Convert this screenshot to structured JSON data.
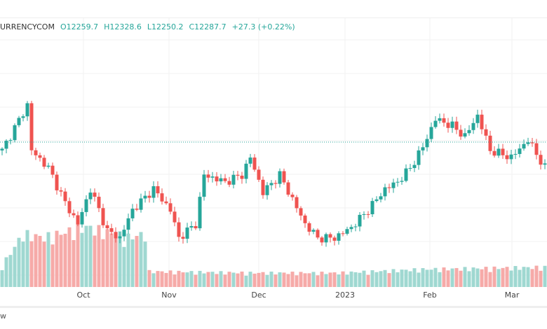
{
  "legend": {
    "symbol": "URRENCYCOM",
    "open": "O12259.7",
    "high": "H12328.6",
    "low": "L12250.2",
    "close": "C12287.7",
    "change": "+27.3 (+0.22%)"
  },
  "bottom_label": "w",
  "colors": {
    "up": "#26a69a",
    "down": "#ef5350",
    "vol_up": "#9fd8d1",
    "vol_down": "#f6aaa8"
  },
  "chart_data": {
    "type": "candlestick",
    "last_price": 12287.7,
    "x_ticks": [
      "Oct",
      "Nov",
      "Dec",
      "2023",
      "Feb",
      "Mar"
    ],
    "close_keypoints": [
      [
        0,
        12240
      ],
      [
        6,
        12500
      ],
      [
        7,
        12240
      ],
      [
        11,
        12140
      ],
      [
        15,
        11940
      ],
      [
        18,
        11820
      ],
      [
        21,
        12020
      ],
      [
        25,
        11780
      ],
      [
        28,
        11740
      ],
      [
        31,
        11900
      ],
      [
        36,
        12020
      ],
      [
        40,
        11900
      ],
      [
        42,
        11740
      ],
      [
        46,
        11820
      ],
      [
        48,
        12100
      ],
      [
        53,
        12060
      ],
      [
        57,
        12100
      ],
      [
        59,
        12200
      ],
      [
        62,
        12000
      ],
      [
        66,
        12100
      ],
      [
        69,
        11960
      ],
      [
        72,
        11820
      ],
      [
        75,
        11740
      ],
      [
        79,
        11740
      ],
      [
        83,
        11800
      ],
      [
        87,
        11900
      ],
      [
        91,
        12020
      ],
      [
        94,
        12060
      ],
      [
        97,
        12140
      ],
      [
        100,
        12260
      ],
      [
        103,
        12420
      ],
      [
        107,
        12380
      ],
      [
        110,
        12320
      ],
      [
        113,
        12440
      ],
      [
        116,
        12240
      ],
      [
        121,
        12200
      ],
      [
        125,
        12300
      ],
      [
        129,
        12140
      ]
    ],
    "volume_keypoints": [
      [
        0,
        30
      ],
      [
        5,
        75
      ],
      [
        10,
        70
      ],
      [
        20,
        85
      ],
      [
        30,
        70
      ],
      [
        34,
        75
      ],
      [
        35,
        22
      ],
      [
        60,
        20
      ],
      [
        80,
        20
      ],
      [
        100,
        25
      ],
      [
        129,
        28
      ]
    ]
  }
}
